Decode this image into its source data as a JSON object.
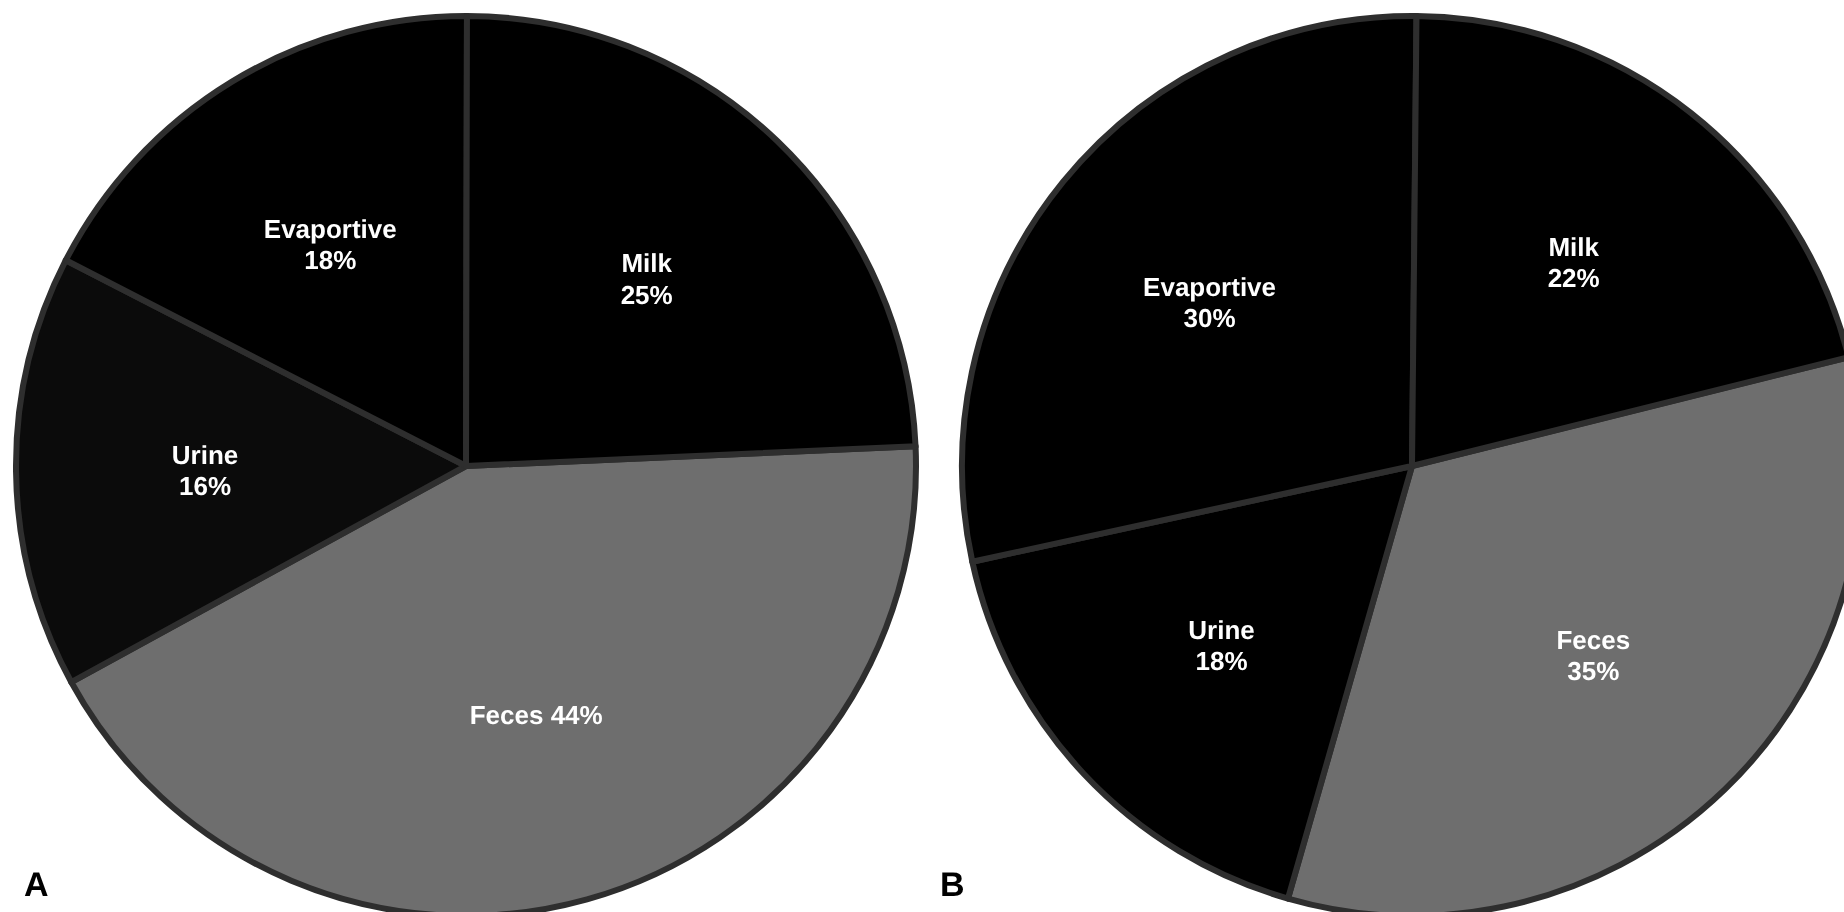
{
  "chart_data": [
    {
      "type": "pie",
      "title": "A",
      "categories": [
        "Feces",
        "Urine",
        "Evaportive",
        "Milk"
      ],
      "values": [
        44,
        16,
        18,
        25
      ],
      "value_labels": [
        "44%",
        "16%",
        "18%",
        "25%"
      ],
      "colors": [
        "#6e6e6e",
        "#0b0b0b",
        "#000000",
        "#000000"
      ]
    },
    {
      "type": "pie",
      "title": "B",
      "categories": [
        "Feces",
        "Urine",
        "Evaportive",
        "Milk"
      ],
      "values": [
        35,
        18,
        30,
        22
      ],
      "value_labels": [
        "35%",
        "18%",
        "30%",
        "22%"
      ],
      "colors": [
        "#6e6e6e",
        "#000000",
        "#000000",
        "#000000"
      ]
    }
  ]
}
